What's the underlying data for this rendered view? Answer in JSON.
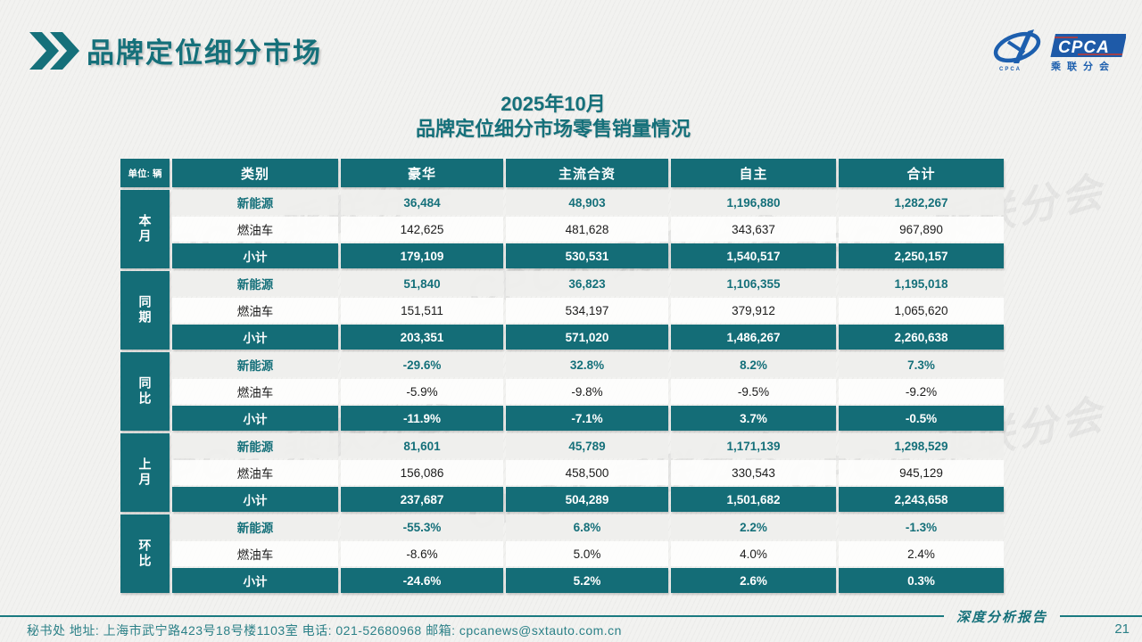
{
  "header": {
    "title": "品牌定位细分市场",
    "logo": {
      "acronym": "CPCA",
      "name": "乘联分会",
      "mark_text": "CPCA"
    }
  },
  "subtitle": {
    "line1": "2025年10月",
    "line2": "品牌定位细分市场零售销量情况"
  },
  "table": {
    "unit_label": "单位: 辆",
    "columns": [
      "类别",
      "豪华",
      "主流合资",
      "自主",
      "合计"
    ],
    "row_labels": {
      "nev": "新能源",
      "fuel": "燃油车",
      "subtotal": "小计"
    },
    "groups": [
      {
        "label": "本月",
        "nev": [
          "36,484",
          "48,903",
          "1,196,880",
          "1,282,267"
        ],
        "fuel": [
          "142,625",
          "481,628",
          "343,637",
          "967,890"
        ],
        "subtotal": [
          "179,109",
          "530,531",
          "1,540,517",
          "2,250,157"
        ]
      },
      {
        "label": "同期",
        "nev": [
          "51,840",
          "36,823",
          "1,106,355",
          "1,195,018"
        ],
        "fuel": [
          "151,511",
          "534,197",
          "379,912",
          "1,065,620"
        ],
        "subtotal": [
          "203,351",
          "571,020",
          "1,486,267",
          "2,260,638"
        ]
      },
      {
        "label": "同比",
        "nev": [
          "-29.6%",
          "32.8%",
          "8.2%",
          "7.3%"
        ],
        "fuel": [
          "-5.9%",
          "-9.8%",
          "-9.5%",
          "-9.2%"
        ],
        "subtotal": [
          "-11.9%",
          "-7.1%",
          "3.7%",
          "-0.5%"
        ]
      },
      {
        "label": "上月",
        "nev": [
          "81,601",
          "45,789",
          "1,171,139",
          "1,298,529"
        ],
        "fuel": [
          "156,086",
          "458,500",
          "330,543",
          "945,129"
        ],
        "subtotal": [
          "237,687",
          "504,289",
          "1,501,682",
          "2,243,658"
        ]
      },
      {
        "label": "环比",
        "nev": [
          "-55.3%",
          "6.8%",
          "2.2%",
          "-1.3%"
        ],
        "fuel": [
          "-8.6%",
          "5.0%",
          "4.0%",
          "2.4%"
        ],
        "subtotal": [
          "-24.6%",
          "5.2%",
          "2.6%",
          "0.3%"
        ]
      }
    ]
  },
  "footer": {
    "contact": "秘书处   地址: 上海市武宁路423号18号楼1103室  电话: 021-52680968   邮箱: cpcanews@sxtauto.com.cn",
    "report_label": "深度分析报告",
    "page_number": "21"
  },
  "watermark_text": "CPCA 乘联分会",
  "colors": {
    "accent_teal": "#15707a",
    "cell_teal": "#146d77",
    "footer_teal": "#2b8087",
    "logo_blue": "#1d5fae",
    "logo_red": "#c8372d",
    "background": "#f2f2f0"
  }
}
